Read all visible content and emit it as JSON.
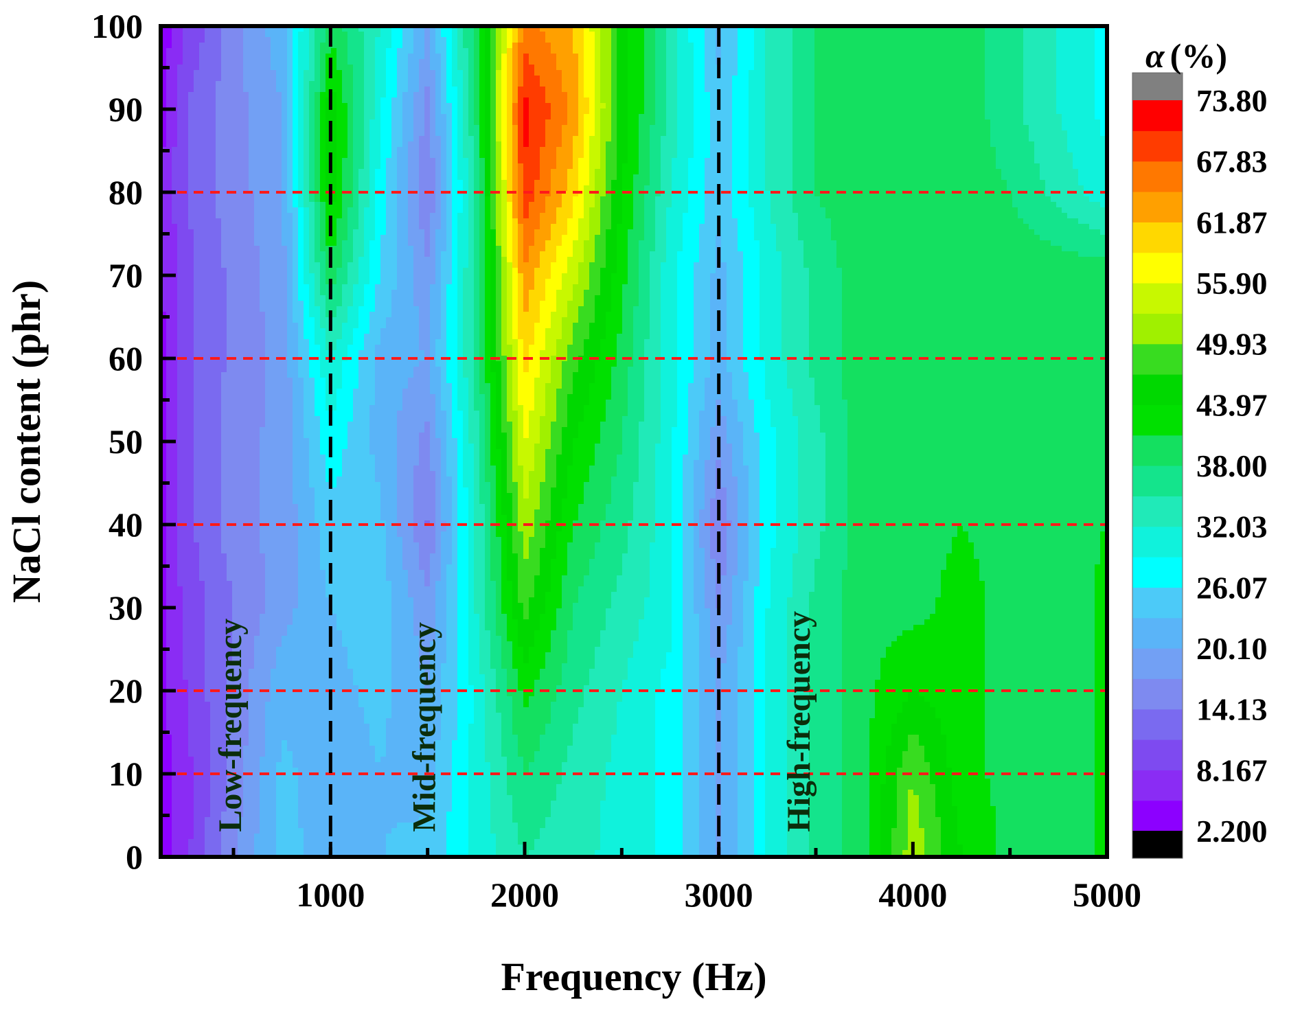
{
  "chart_data": {
    "type": "heatmap",
    "title": "",
    "xlabel": "Frequency (Hz)",
    "ylabel": "NaCl content (phr)",
    "xlim": [
      125,
      5000
    ],
    "ylim": [
      0,
      100
    ],
    "x_ticks": [
      1000,
      2000,
      3000,
      4000,
      5000
    ],
    "x_tick_labels": [
      "1000",
      "2000",
      "3000",
      "4000",
      "5000"
    ],
    "y_ticks": [
      0,
      10,
      20,
      30,
      40,
      50,
      60,
      70,
      80,
      90,
      100
    ],
    "y_tick_labels": [
      "0",
      "10",
      "20",
      "30",
      "40",
      "50",
      "60",
      "70",
      "80",
      "90",
      "100"
    ],
    "x": [
      125,
      250,
      500,
      750,
      1000,
      1250,
      1500,
      1750,
      2000,
      2250,
      2500,
      2750,
      3000,
      3250,
      3500,
      3750,
      4000,
      4250,
      4500,
      4750,
      5000
    ],
    "y": [
      0,
      10,
      20,
      30,
      40,
      50,
      60,
      70,
      80,
      90,
      100
    ],
    "z": [
      [
        4,
        7,
        17,
        24,
        22,
        23,
        24,
        30,
        35,
        33,
        31,
        28,
        20,
        29,
        36,
        40,
        52,
        44,
        40,
        38,
        42
      ],
      [
        4,
        7,
        15,
        24,
        21,
        23,
        22,
        30,
        38,
        34,
        31,
        28,
        20,
        29,
        36,
        40,
        50,
        42,
        40,
        38,
        42
      ],
      [
        4,
        8,
        15,
        22,
        22,
        24,
        20,
        30,
        42,
        36,
        32,
        28,
        20,
        29,
        36,
        40,
        44,
        42,
        40,
        38,
        42
      ],
      [
        4,
        9,
        14,
        19,
        23,
        25,
        18,
        32,
        48,
        38,
        34,
        30,
        17,
        29,
        36,
        40,
        40,
        42,
        40,
        38,
        42
      ],
      [
        4,
        10,
        16,
        18,
        25,
        24,
        14,
        32,
        52,
        41,
        36,
        30,
        14,
        28,
        34,
        40,
        40,
        41,
        40,
        40,
        41
      ],
      [
        4,
        10,
        16,
        18,
        28,
        22,
        16,
        34,
        56,
        44,
        38,
        30,
        18,
        28,
        34,
        40,
        40,
        40,
        40,
        40,
        40
      ],
      [
        4,
        10,
        15,
        18,
        32,
        22,
        20,
        36,
        60,
        48,
        40,
        30,
        22,
        30,
        36,
        40,
        40,
        40,
        40,
        40,
        40
      ],
      [
        5,
        10,
        15,
        19,
        40,
        26,
        18,
        36,
        64,
        54,
        42,
        30,
        22,
        30,
        36,
        40,
        40,
        40,
        40,
        40,
        40
      ],
      [
        5,
        11,
        16,
        19,
        46,
        28,
        14,
        36,
        70,
        60,
        44,
        32,
        24,
        32,
        38,
        40,
        40,
        40,
        38,
        34,
        30
      ],
      [
        4,
        11,
        16,
        20,
        46,
        30,
        16,
        38,
        72,
        64,
        46,
        34,
        24,
        32,
        38,
        40,
        40,
        40,
        36,
        32,
        28
      ],
      [
        3,
        8,
        16,
        22,
        40,
        32,
        20,
        40,
        66,
        62,
        46,
        34,
        22,
        32,
        38,
        40,
        40,
        40,
        36,
        32,
        28
      ]
    ],
    "vlines": [
      1000,
      3000
    ],
    "hlines": [
      10,
      20,
      40,
      60,
      80
    ],
    "region_labels": [
      {
        "text": "Low-frequency",
        "x": 500,
        "y": 3
      },
      {
        "text": "Mid-frequency",
        "x": 1500,
        "y": 3
      },
      {
        "text": "High-frequency",
        "x": 3430,
        "y": 3
      }
    ],
    "colorbar": {
      "title_symbol": "α",
      "title_unit": "(%)",
      "min": 2.2,
      "max": 73.8,
      "levels": 24,
      "tick_labels": [
        "2.200",
        "8.167",
        "14.13",
        "20.10",
        "26.07",
        "32.03",
        "38.00",
        "43.97",
        "49.93",
        "55.90",
        "61.87",
        "67.83",
        "73.80"
      ],
      "under_color": "#000000",
      "over_color": "#808080",
      "colors": [
        "#8c00ff",
        "#8a2cf4",
        "#7e4af0",
        "#7a6af0",
        "#7e8af0",
        "#72a0f4",
        "#5ab4f8",
        "#4ccaf8",
        "#00ffff",
        "#10f2dc",
        "#20eab8",
        "#14e48c",
        "#14e060",
        "#00e000",
        "#00d800",
        "#38dc20",
        "#a0f000",
        "#c8f800",
        "#ffff00",
        "#ffd800",
        "#ffa000",
        "#ff7800",
        "#ff3c00",
        "#ff0000"
      ]
    }
  }
}
